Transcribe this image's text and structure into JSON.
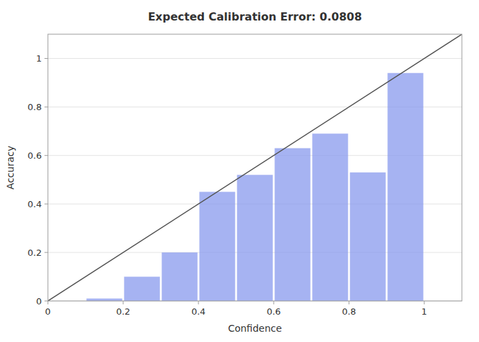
{
  "chart_data": {
    "type": "bar",
    "title": "Expected Calibration Error: 0.0808",
    "xlabel": "Confidence",
    "ylabel": "Accuracy",
    "series": [
      {
        "type": "bar",
        "color": "#8899ee",
        "x": [
          0.15,
          0.25,
          0.35,
          0.45,
          0.55,
          0.65,
          0.75,
          0.85,
          0.95
        ],
        "values": [
          0.01,
          0.1,
          0.2,
          0.45,
          0.52,
          0.63,
          0.69,
          0.53,
          0.94
        ]
      },
      {
        "type": "line",
        "color": "#555555",
        "x": [
          0,
          1.1
        ],
        "values": [
          0,
          1.1
        ]
      }
    ],
    "xlim": [
      0,
      1.1
    ],
    "ylim": [
      0,
      1.1
    ],
    "xticks": [
      0,
      0.2,
      0.4,
      0.6,
      0.8,
      1
    ],
    "yticks": [
      0,
      0.2,
      0.4,
      0.6,
      0.8,
      1
    ],
    "grid": "y"
  }
}
